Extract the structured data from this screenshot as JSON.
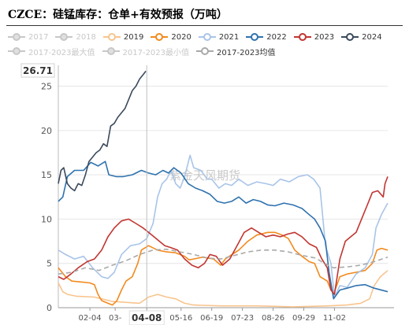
{
  "title": "CZCE：硅锰库存：仓单+有效预报（万吨）",
  "watermark": "紫金天风期货",
  "chart_data": {
    "type": "line",
    "ylim": [
      0,
      27
    ],
    "yticks": [
      0,
      5,
      10,
      15,
      20,
      25
    ],
    "x_range": [
      0,
      365
    ],
    "xticks": [
      {
        "label": "02-04",
        "x": 35
      },
      {
        "label": "03-",
        "x": 63
      },
      {
        "label": "04-08",
        "x": 98,
        "highlight": true
      },
      {
        "label": "05-16",
        "x": 136
      },
      {
        "label": "06-19",
        "x": 170
      },
      {
        "label": "07-23",
        "x": 204
      },
      {
        "label": "08-26",
        "x": 238
      },
      {
        "label": "09-29",
        "x": 272
      },
      {
        "label": "11-02",
        "x": 306
      }
    ],
    "tooltip": {
      "value": "26.71"
    },
    "grid": true,
    "legend_position": "top",
    "series": [
      {
        "name": "2017",
        "color": "#c8c8c8",
        "hidden": true,
        "points": []
      },
      {
        "name": "2018",
        "color": "#c8c8c8",
        "hidden": true,
        "points": []
      },
      {
        "name": "2019",
        "color": "#f8c48e",
        "points": [
          [
            0,
            2.8
          ],
          [
            5,
            1.8
          ],
          [
            10,
            1.5
          ],
          [
            20,
            1.3
          ],
          [
            40,
            1.2
          ],
          [
            60,
            0.7
          ],
          [
            90,
            0.5
          ],
          [
            100,
            1.2
          ],
          [
            110,
            1.5
          ],
          [
            120,
            1.2
          ],
          [
            130,
            1.0
          ],
          [
            140,
            0.5
          ],
          [
            150,
            0.3
          ],
          [
            180,
            0.2
          ],
          [
            220,
            0.2
          ],
          [
            260,
            0.1
          ],
          [
            300,
            0.2
          ],
          [
            320,
            0.3
          ],
          [
            335,
            0.5
          ],
          [
            345,
            1.0
          ],
          [
            350,
            2.5
          ],
          [
            357,
            3.5
          ],
          [
            365,
            4.2
          ]
        ]
      },
      {
        "name": "2020",
        "color": "#f28a1e",
        "points": [
          [
            0,
            4.5
          ],
          [
            8,
            3.5
          ],
          [
            15,
            3.0
          ],
          [
            25,
            2.9
          ],
          [
            35,
            2.8
          ],
          [
            40,
            2.6
          ],
          [
            44,
            1.5
          ],
          [
            48,
            0.8
          ],
          [
            55,
            0.5
          ],
          [
            60,
            0.3
          ],
          [
            65,
            0.8
          ],
          [
            70,
            2.0
          ],
          [
            75,
            3.0
          ],
          [
            82,
            3.5
          ],
          [
            88,
            5.0
          ],
          [
            92,
            6.5
          ],
          [
            100,
            7.0
          ],
          [
            110,
            6.5
          ],
          [
            120,
            6.3
          ],
          [
            130,
            6.2
          ],
          [
            140,
            5.8
          ],
          [
            145,
            5.4
          ],
          [
            150,
            5.5
          ],
          [
            160,
            5.7
          ],
          [
            172,
            5.5
          ],
          [
            180,
            4.8
          ],
          [
            185,
            5.5
          ],
          [
            200,
            6.5
          ],
          [
            210,
            7.5
          ],
          [
            220,
            8.2
          ],
          [
            232,
            8.5
          ],
          [
            240,
            8.5
          ],
          [
            248,
            8.2
          ],
          [
            255,
            7.8
          ],
          [
            262,
            6.5
          ],
          [
            270,
            5.8
          ],
          [
            278,
            5.2
          ],
          [
            284,
            5.0
          ],
          [
            290,
            3.5
          ],
          [
            298,
            3.0
          ],
          [
            302,
            2.0
          ],
          [
            306,
            1.8
          ],
          [
            312,
            3.5
          ],
          [
            320,
            3.8
          ],
          [
            330,
            4.0
          ],
          [
            340,
            4.2
          ],
          [
            348,
            5.0
          ],
          [
            353,
            6.5
          ],
          [
            358,
            6.7
          ],
          [
            365,
            6.5
          ]
        ]
      },
      {
        "name": "2021",
        "color": "#a9c4e8",
        "points": [
          [
            0,
            6.5
          ],
          [
            8,
            6.0
          ],
          [
            18,
            5.5
          ],
          [
            28,
            5.8
          ],
          [
            38,
            4.5
          ],
          [
            48,
            3.5
          ],
          [
            55,
            3.3
          ],
          [
            62,
            4.0
          ],
          [
            70,
            6.0
          ],
          [
            80,
            7.0
          ],
          [
            90,
            7.2
          ],
          [
            98,
            7.8
          ],
          [
            105,
            9.5
          ],
          [
            110,
            12.5
          ],
          [
            115,
            14.0
          ],
          [
            120,
            14.5
          ],
          [
            125,
            15.5
          ],
          [
            130,
            14.0
          ],
          [
            135,
            13.5
          ],
          [
            140,
            14.8
          ],
          [
            146,
            17.2
          ],
          [
            150,
            15.8
          ],
          [
            158,
            15.5
          ],
          [
            165,
            14.5
          ],
          [
            170,
            14.5
          ],
          [
            178,
            13.5
          ],
          [
            185,
            14.0
          ],
          [
            192,
            13.8
          ],
          [
            200,
            14.5
          ],
          [
            210,
            13.8
          ],
          [
            220,
            14.2
          ],
          [
            230,
            14.0
          ],
          [
            238,
            13.8
          ],
          [
            246,
            14.5
          ],
          [
            256,
            14.2
          ],
          [
            266,
            14.8
          ],
          [
            276,
            15.0
          ],
          [
            283,
            14.5
          ],
          [
            290,
            13.5
          ],
          [
            296,
            7.0
          ],
          [
            302,
            5.0
          ],
          [
            306,
            1.2
          ],
          [
            312,
            2.5
          ],
          [
            320,
            2.3
          ],
          [
            330,
            3.8
          ],
          [
            340,
            4.5
          ],
          [
            348,
            6.0
          ],
          [
            352,
            9.0
          ],
          [
            358,
            10.5
          ],
          [
            365,
            11.8
          ]
        ]
      },
      {
        "name": "2022",
        "color": "#2f72ae",
        "points": [
          [
            0,
            12.0
          ],
          [
            5,
            12.5
          ],
          [
            10,
            14.8
          ],
          [
            18,
            15.5
          ],
          [
            28,
            15.5
          ],
          [
            36,
            16.4
          ],
          [
            44,
            16.0
          ],
          [
            52,
            16.5
          ],
          [
            56,
            15.0
          ],
          [
            64,
            14.8
          ],
          [
            72,
            14.8
          ],
          [
            82,
            15.0
          ],
          [
            92,
            15.5
          ],
          [
            100,
            15.2
          ],
          [
            108,
            15.0
          ],
          [
            116,
            15.5
          ],
          [
            122,
            15.2
          ],
          [
            128,
            15.8
          ],
          [
            136,
            15.2
          ],
          [
            144,
            14.0
          ],
          [
            152,
            13.5
          ],
          [
            160,
            13.2
          ],
          [
            168,
            12.8
          ],
          [
            176,
            12.0
          ],
          [
            184,
            11.8
          ],
          [
            192,
            12.0
          ],
          [
            200,
            12.5
          ],
          [
            208,
            11.8
          ],
          [
            216,
            12.2
          ],
          [
            224,
            12.0
          ],
          [
            232,
            11.6
          ],
          [
            240,
            11.5
          ],
          [
            250,
            11.8
          ],
          [
            260,
            11.6
          ],
          [
            270,
            11.2
          ],
          [
            278,
            10.5
          ],
          [
            284,
            10.0
          ],
          [
            290,
            9.0
          ],
          [
            296,
            7.5
          ],
          [
            300,
            4.0
          ],
          [
            305,
            1.0
          ],
          [
            312,
            2.0
          ],
          [
            320,
            2.2
          ],
          [
            330,
            2.5
          ],
          [
            340,
            2.6
          ],
          [
            350,
            2.2
          ],
          [
            365,
            1.8
          ]
        ]
      },
      {
        "name": "2023",
        "color": "#c23531",
        "points": [
          [
            0,
            3.5
          ],
          [
            6,
            3.2
          ],
          [
            14,
            3.8
          ],
          [
            22,
            4.5
          ],
          [
            32,
            5.2
          ],
          [
            40,
            5.5
          ],
          [
            48,
            6.5
          ],
          [
            55,
            8.0
          ],
          [
            62,
            9.0
          ],
          [
            70,
            9.8
          ],
          [
            78,
            10.0
          ],
          [
            86,
            9.5
          ],
          [
            94,
            9.0
          ],
          [
            100,
            8.5
          ],
          [
            106,
            8.0
          ],
          [
            112,
            7.5
          ],
          [
            118,
            7.0
          ],
          [
            124,
            6.8
          ],
          [
            132,
            6.5
          ],
          [
            140,
            5.5
          ],
          [
            148,
            4.8
          ],
          [
            155,
            4.5
          ],
          [
            162,
            5.0
          ],
          [
            168,
            6.0
          ],
          [
            175,
            5.8
          ],
          [
            182,
            4.8
          ],
          [
            190,
            5.5
          ],
          [
            198,
            7.0
          ],
          [
            206,
            8.5
          ],
          [
            214,
            9.0
          ],
          [
            222,
            8.5
          ],
          [
            230,
            8.0
          ],
          [
            238,
            8.2
          ],
          [
            246,
            8.0
          ],
          [
            254,
            8.3
          ],
          [
            262,
            8.5
          ],
          [
            270,
            8.0
          ],
          [
            278,
            7.2
          ],
          [
            286,
            6.8
          ],
          [
            292,
            5.5
          ],
          [
            298,
            4.5
          ],
          [
            302,
            2.0
          ],
          [
            306,
            1.5
          ],
          [
            312,
            5.5
          ],
          [
            318,
            7.5
          ],
          [
            324,
            8.0
          ],
          [
            330,
            8.5
          ],
          [
            336,
            10.0
          ],
          [
            342,
            11.5
          ],
          [
            348,
            13.0
          ],
          [
            354,
            13.2
          ],
          [
            360,
            12.5
          ],
          [
            362,
            14.0
          ],
          [
            365,
            14.8
          ]
        ]
      },
      {
        "name": "2024",
        "color": "#3b4a5c",
        "points": [
          [
            0,
            14.0
          ],
          [
            3,
            15.5
          ],
          [
            6,
            15.8
          ],
          [
            10,
            14.0
          ],
          [
            14,
            13.5
          ],
          [
            18,
            13.2
          ],
          [
            22,
            14.0
          ],
          [
            26,
            13.8
          ],
          [
            30,
            15.0
          ],
          [
            34,
            16.5
          ],
          [
            38,
            17.0
          ],
          [
            42,
            17.5
          ],
          [
            46,
            17.8
          ],
          [
            50,
            18.5
          ],
          [
            54,
            18.2
          ],
          [
            58,
            20.5
          ],
          [
            62,
            20.8
          ],
          [
            66,
            21.5
          ],
          [
            70,
            22.0
          ],
          [
            74,
            22.5
          ],
          [
            78,
            23.5
          ],
          [
            82,
            24.5
          ],
          [
            86,
            25.0
          ],
          [
            90,
            25.8
          ],
          [
            94,
            26.3
          ],
          [
            97,
            26.7
          ]
        ]
      },
      {
        "name": "2017-2023最大值",
        "color": "#c8c8c8",
        "hidden": true,
        "points": []
      },
      {
        "name": "2017-2023最小值",
        "color": "#c8c8c8",
        "hidden": true,
        "points": []
      },
      {
        "name": "2017-2023均值",
        "color": "#a9a9a9",
        "dashed": true,
        "points": [
          [
            0,
            3.8
          ],
          [
            15,
            4.0
          ],
          [
            30,
            4.5
          ],
          [
            45,
            4.2
          ],
          [
            60,
            4.8
          ],
          [
            75,
            5.3
          ],
          [
            90,
            6.0
          ],
          [
            105,
            6.5
          ],
          [
            120,
            6.6
          ],
          [
            135,
            6.3
          ],
          [
            150,
            6.0
          ],
          [
            165,
            5.6
          ],
          [
            180,
            5.5
          ],
          [
            195,
            5.9
          ],
          [
            210,
            6.3
          ],
          [
            225,
            6.5
          ],
          [
            240,
            6.5
          ],
          [
            255,
            6.3
          ],
          [
            270,
            5.9
          ],
          [
            285,
            5.6
          ],
          [
            295,
            5.0
          ],
          [
            305,
            4.5
          ],
          [
            320,
            4.6
          ],
          [
            335,
            4.8
          ],
          [
            350,
            5.2
          ],
          [
            365,
            5.7
          ]
        ]
      }
    ]
  }
}
